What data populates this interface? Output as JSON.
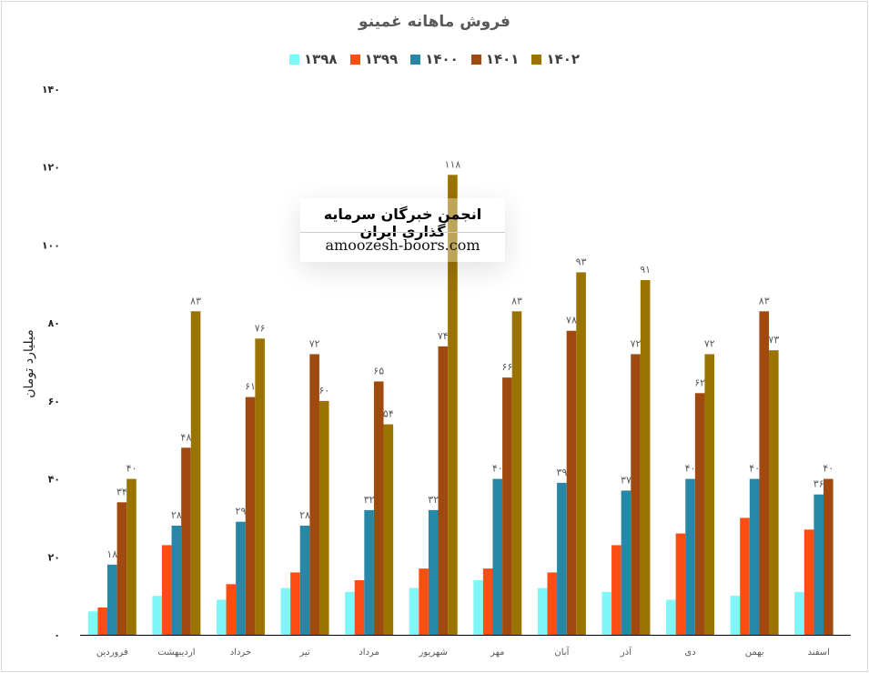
{
  "chart_data": {
    "type": "bar",
    "title": "فروش ماهانه غمینو",
    "ylabel": "میلیارد تومان",
    "xlabel": "",
    "ylim": [
      0,
      140
    ],
    "yticks": [
      "۰",
      "۲۰",
      "۴۰",
      "۶۰",
      "۸۰",
      "۱۰۰",
      "۱۲۰",
      "۱۴۰"
    ],
    "ytick_values": [
      0,
      20,
      40,
      60,
      80,
      100,
      120,
      140
    ],
    "grid": false,
    "legend_position": "top",
    "categories": [
      "فروردین",
      "اردیبهشت",
      "خرداد",
      "تیر",
      "مرداد",
      "شهریور",
      "مهر",
      "آبان",
      "آذر",
      "دی",
      "بهمن",
      "اسفند"
    ],
    "series": [
      {
        "name": "۱۳۹۸",
        "color": "#7ff7f9",
        "labeled": false,
        "values": [
          6,
          10,
          9,
          12,
          11,
          12,
          14,
          12,
          11,
          9,
          10,
          11
        ]
      },
      {
        "name": "۱۳۹۹",
        "color": "#fc4e12",
        "labeled": false,
        "values": [
          7,
          23,
          13,
          16,
          14,
          17,
          17,
          16,
          23,
          26,
          30,
          27
        ]
      },
      {
        "name": "۱۴۰۰",
        "color": "#2886a6",
        "labeled": true,
        "values": [
          18,
          28,
          29,
          28,
          32,
          32,
          40,
          39,
          37,
          40,
          40,
          36
        ]
      },
      {
        "name": "۱۴۰۱",
        "color": "#a04a10",
        "labeled": true,
        "values": [
          34,
          48,
          61,
          72,
          65,
          74,
          66,
          78,
          72,
          62,
          83,
          40
        ]
      },
      {
        "name": "۱۴۰۲",
        "color": "#9a7300",
        "labeled": true,
        "values": [
          40,
          83,
          76,
          60,
          54,
          118,
          83,
          93,
          91,
          72,
          73,
          null
        ]
      }
    ]
  },
  "watermark": {
    "line1": "انجمن خبرگان سرمایه گذاری ایران",
    "line2": "amoozesh-boors.com"
  }
}
